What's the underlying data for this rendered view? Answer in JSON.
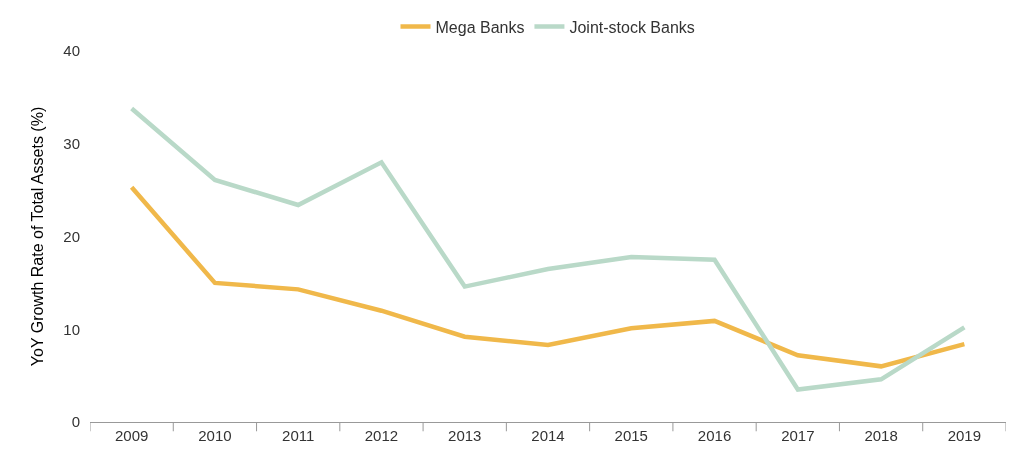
{
  "chart_data": {
    "type": "line",
    "ylabel": "YoY Growth Rate of Total Assets (%)",
    "categories": [
      "2009",
      "2010",
      "2011",
      "2012",
      "2013",
      "2014",
      "2015",
      "2016",
      "2017",
      "2018",
      "2019"
    ],
    "series": [
      {
        "name": "Mega Banks",
        "color": "#f0b84a",
        "values": [
          25.3,
          15.0,
          14.3,
          12.0,
          9.2,
          8.3,
          10.1,
          10.9,
          7.2,
          6.0,
          8.4
        ]
      },
      {
        "name": "Joint-stock Banks",
        "color": "#b9d9c8",
        "values": [
          33.8,
          26.1,
          23.4,
          28.0,
          14.6,
          16.5,
          17.8,
          17.5,
          3.5,
          4.6,
          10.2
        ]
      }
    ],
    "ylim": [
      0,
      40
    ],
    "yticks": [
      0,
      10,
      20,
      30,
      40
    ],
    "legend": "top",
    "marker": "none",
    "line_style": "solid"
  }
}
